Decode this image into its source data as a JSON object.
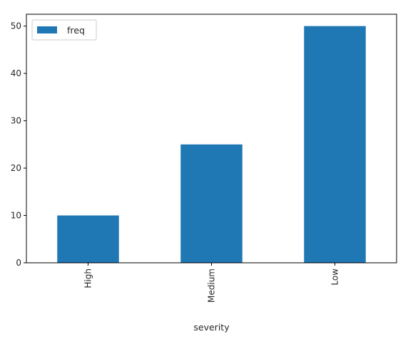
{
  "chart_data": {
    "type": "bar",
    "categories": [
      "High",
      "Medium",
      "Low"
    ],
    "series": [
      {
        "name": "freq",
        "values": [
          10,
          25,
          50
        ],
        "color": "#1f77b4"
      }
    ],
    "xlabel": "severity",
    "ylabel": "",
    "ylim": [
      0,
      52.5
    ],
    "yticks": [
      "0",
      "10",
      "20",
      "30",
      "40",
      "50"
    ],
    "grid": false,
    "legend_position": "upper-left"
  }
}
